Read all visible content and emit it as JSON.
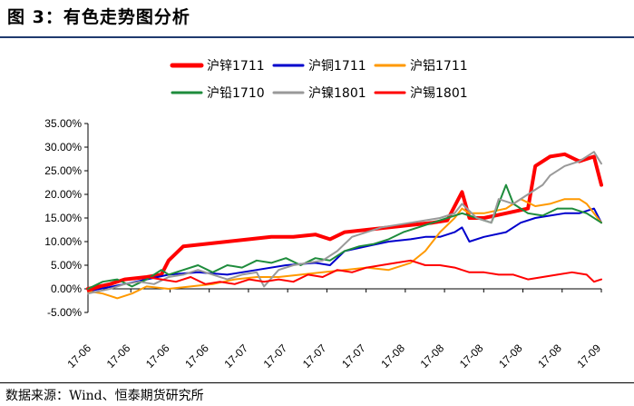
{
  "header": {
    "title": "图 3：有色走势图分析"
  },
  "footer": {
    "source": "数据来源：Wind、恒泰期货研究所"
  },
  "chart_data": {
    "type": "line",
    "title": "",
    "xlabel": "",
    "ylabel": "",
    "ylim": [
      -5,
      35
    ],
    "y_ticks": [
      -5,
      0,
      5,
      10,
      15,
      20,
      25,
      30,
      35
    ],
    "y_tick_labels": [
      "-5.00%",
      "0.00%",
      "5.00%",
      "10.00%",
      "15.00%",
      "20.00%",
      "25.00%",
      "30.00%",
      "35.00%"
    ],
    "x_tick_labels": [
      "17-06",
      "17-06",
      "17-06",
      "17-06",
      "17-07",
      "17-07",
      "17-07",
      "17-07",
      "17-08",
      "17-08",
      "17-08",
      "17-08",
      "17-08",
      "17-09"
    ],
    "x_index_range": [
      0,
      70
    ],
    "legend_position": "top",
    "grid": false,
    "series": [
      {
        "name": "沪锌1711",
        "color": "#ff0000",
        "width": 4,
        "points": [
          [
            0,
            0
          ],
          [
            3,
            1
          ],
          [
            5,
            2
          ],
          [
            8,
            2.5
          ],
          [
            10,
            3
          ],
          [
            11,
            6
          ],
          [
            13,
            9
          ],
          [
            16,
            9.5
          ],
          [
            19,
            10
          ],
          [
            22,
            10.5
          ],
          [
            25,
            11
          ],
          [
            28,
            11
          ],
          [
            31,
            11.5
          ],
          [
            33,
            10.5
          ],
          [
            35,
            12
          ],
          [
            38,
            12.5
          ],
          [
            41,
            13
          ],
          [
            44,
            13.5
          ],
          [
            47,
            14
          ],
          [
            49,
            14.5
          ],
          [
            51,
            20.5
          ],
          [
            52,
            15
          ],
          [
            54,
            15
          ],
          [
            57,
            16
          ],
          [
            60,
            17
          ],
          [
            61,
            26
          ],
          [
            63,
            28
          ],
          [
            65,
            28.5
          ],
          [
            67,
            27
          ],
          [
            69,
            28
          ],
          [
            70,
            22
          ]
        ]
      },
      {
        "name": "沪铜1711",
        "color": "#0000cc",
        "width": 2,
        "points": [
          [
            0,
            -0.5
          ],
          [
            5,
            1
          ],
          [
            8,
            2
          ],
          [
            11,
            3
          ],
          [
            15,
            3.5
          ],
          [
            19,
            3
          ],
          [
            23,
            4
          ],
          [
            27,
            5
          ],
          [
            31,
            5.5
          ],
          [
            33,
            5
          ],
          [
            35,
            8
          ],
          [
            38,
            9
          ],
          [
            41,
            10
          ],
          [
            44,
            10.5
          ],
          [
            46,
            11
          ],
          [
            48,
            11
          ],
          [
            50,
            12
          ],
          [
            51,
            13
          ],
          [
            52,
            10
          ],
          [
            54,
            11
          ],
          [
            57,
            12
          ],
          [
            59,
            14
          ],
          [
            61,
            15
          ],
          [
            63,
            15.5
          ],
          [
            65,
            16
          ],
          [
            67,
            16
          ],
          [
            69,
            17
          ],
          [
            70,
            14
          ]
        ]
      },
      {
        "name": "沪铝1711",
        "color": "#ff9900",
        "width": 2,
        "points": [
          [
            0,
            -0.5
          ],
          [
            2,
            -1
          ],
          [
            4,
            -2
          ],
          [
            6,
            -1
          ],
          [
            8,
            0.5
          ],
          [
            11,
            0
          ],
          [
            14,
            0.5
          ],
          [
            17,
            1
          ],
          [
            20,
            2
          ],
          [
            23,
            2.5
          ],
          [
            26,
            2.5
          ],
          [
            29,
            3
          ],
          [
            32,
            3.5
          ],
          [
            35,
            4
          ],
          [
            38,
            4.5
          ],
          [
            41,
            4
          ],
          [
            44,
            5.5
          ],
          [
            46,
            8
          ],
          [
            48,
            12
          ],
          [
            50,
            15
          ],
          [
            51,
            17
          ],
          [
            52,
            16
          ],
          [
            54,
            16
          ],
          [
            57,
            17
          ],
          [
            59,
            19
          ],
          [
            61,
            17.5
          ],
          [
            63,
            18
          ],
          [
            65,
            19
          ],
          [
            67,
            19
          ],
          [
            68,
            18
          ],
          [
            70,
            14
          ]
        ]
      },
      {
        "name": "沪铅1710",
        "color": "#1e8c3c",
        "width": 2,
        "points": [
          [
            0,
            0
          ],
          [
            2,
            1.5
          ],
          [
            4,
            2
          ],
          [
            6,
            0.5
          ],
          [
            8,
            2
          ],
          [
            10,
            4
          ],
          [
            11,
            3
          ],
          [
            13,
            4
          ],
          [
            15,
            5
          ],
          [
            17,
            3.5
          ],
          [
            19,
            5
          ],
          [
            21,
            4.5
          ],
          [
            23,
            6
          ],
          [
            25,
            5.5
          ],
          [
            27,
            6.5
          ],
          [
            29,
            5
          ],
          [
            31,
            6.5
          ],
          [
            33,
            6
          ],
          [
            35,
            8
          ],
          [
            37,
            9
          ],
          [
            39,
            9.5
          ],
          [
            41,
            10.5
          ],
          [
            43,
            12
          ],
          [
            45,
            13
          ],
          [
            47,
            14
          ],
          [
            49,
            15
          ],
          [
            51,
            16
          ],
          [
            53,
            15
          ],
          [
            55,
            14
          ],
          [
            57,
            22
          ],
          [
            58,
            18
          ],
          [
            60,
            16
          ],
          [
            62,
            15.5
          ],
          [
            64,
            17
          ],
          [
            66,
            17
          ],
          [
            68,
            16
          ],
          [
            70,
            14
          ]
        ]
      },
      {
        "name": "沪镍1801",
        "color": "#999999",
        "width": 2,
        "points": [
          [
            0,
            -1
          ],
          [
            3,
            0
          ],
          [
            5,
            1
          ],
          [
            7,
            1.5
          ],
          [
            9,
            1
          ],
          [
            11,
            2.5
          ],
          [
            13,
            3
          ],
          [
            15,
            4
          ],
          [
            17,
            3
          ],
          [
            19,
            2
          ],
          [
            21,
            3
          ],
          [
            23,
            3.5
          ],
          [
            24,
            0.5
          ],
          [
            26,
            4
          ],
          [
            28,
            5
          ],
          [
            30,
            5.5
          ],
          [
            32,
            6
          ],
          [
            34,
            8
          ],
          [
            36,
            11
          ],
          [
            38,
            12
          ],
          [
            40,
            13
          ],
          [
            42,
            13.5
          ],
          [
            44,
            14
          ],
          [
            46,
            14.5
          ],
          [
            48,
            15
          ],
          [
            50,
            16
          ],
          [
            51,
            18
          ],
          [
            53,
            15
          ],
          [
            55,
            14
          ],
          [
            56,
            19
          ],
          [
            58,
            18
          ],
          [
            60,
            20
          ],
          [
            62,
            22
          ],
          [
            63,
            24
          ],
          [
            65,
            26
          ],
          [
            67,
            27
          ],
          [
            69,
            29
          ],
          [
            70,
            26.5
          ]
        ]
      },
      {
        "name": "沪锡1801",
        "color": "#ff0000",
        "width": 2,
        "points": [
          [
            0,
            -0.5
          ],
          [
            3,
            1
          ],
          [
            5,
            2
          ],
          [
            8,
            2.5
          ],
          [
            10,
            2
          ],
          [
            12,
            1.5
          ],
          [
            14,
            2.5
          ],
          [
            16,
            1
          ],
          [
            18,
            1.5
          ],
          [
            20,
            1
          ],
          [
            22,
            2
          ],
          [
            24,
            1.5
          ],
          [
            26,
            2
          ],
          [
            28,
            1.5
          ],
          [
            30,
            3
          ],
          [
            32,
            2.5
          ],
          [
            34,
            4
          ],
          [
            36,
            3.5
          ],
          [
            38,
            4.5
          ],
          [
            40,
            5
          ],
          [
            42,
            5.5
          ],
          [
            44,
            6
          ],
          [
            46,
            5
          ],
          [
            48,
            5
          ],
          [
            50,
            4.5
          ],
          [
            52,
            3.5
          ],
          [
            54,
            3.5
          ],
          [
            56,
            3
          ],
          [
            58,
            3
          ],
          [
            60,
            2
          ],
          [
            62,
            2.5
          ],
          [
            64,
            3
          ],
          [
            66,
            3.5
          ],
          [
            68,
            3
          ],
          [
            69,
            1.5
          ],
          [
            70,
            2
          ]
        ]
      }
    ]
  }
}
